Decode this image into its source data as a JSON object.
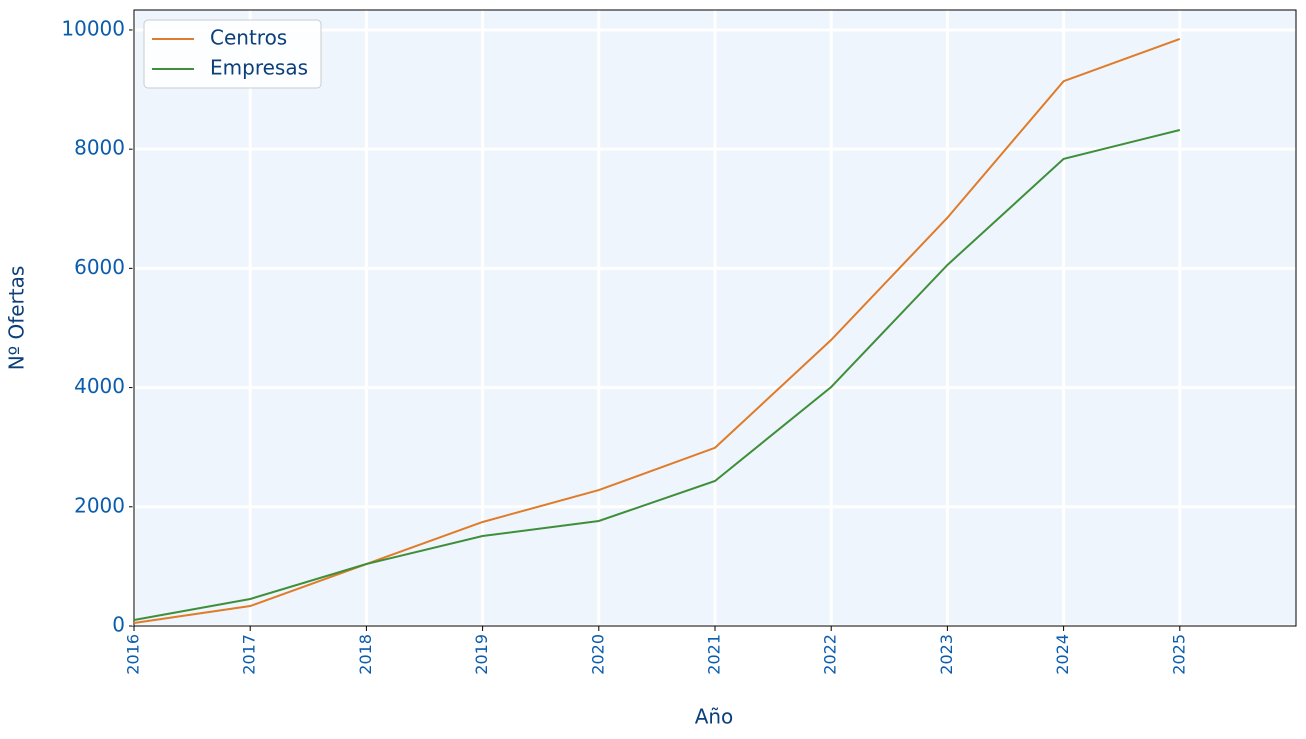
{
  "chart_data": {
    "type": "line",
    "x_label": "Año",
    "y_label": "Nº Ofertas",
    "x": [
      2016,
      2017,
      2018,
      2019,
      2020,
      2021,
      2022,
      2023,
      2024,
      2025
    ],
    "series": [
      {
        "name": "Centros",
        "color": "#e07b28",
        "values": [
          50,
          335,
          1040,
          1745,
          2280,
          2990,
          4800,
          6850,
          9140,
          9850
        ]
      },
      {
        "name": "Empresas",
        "color": "#3f8f3a",
        "values": [
          100,
          453,
          1040,
          1510,
          1762,
          2433,
          4010,
          6057,
          7836,
          8322
        ]
      }
    ],
    "xlim": [
      2016,
      2026
    ],
    "xticks": [
      2016,
      2017,
      2018,
      2019,
      2020,
      2021,
      2022,
      2023,
      2024,
      2025
    ],
    "ylim": [
      0,
      10335
    ],
    "yticks": [
      0,
      2000,
      4000,
      6000,
      8000,
      10000
    ],
    "grid": true,
    "legend": "upper left",
    "background": "#eef5fd"
  }
}
